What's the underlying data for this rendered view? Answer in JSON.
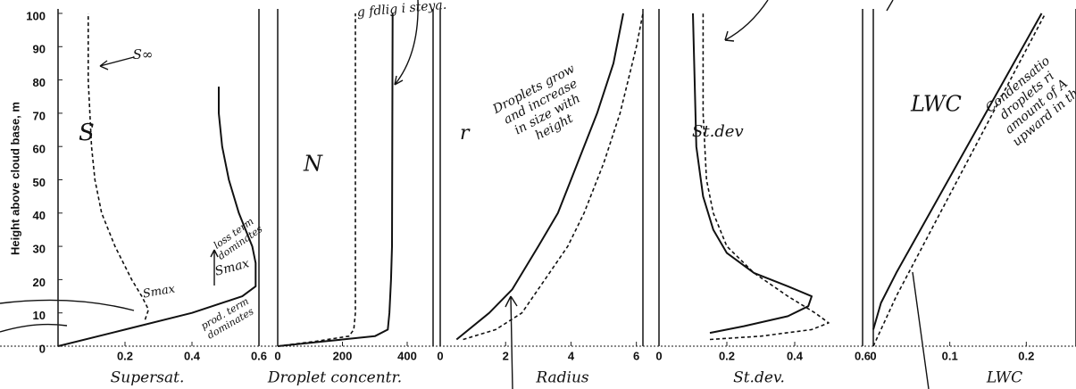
{
  "chart_data": [
    {
      "type": "line",
      "ylabel": "Height above cloud base, m",
      "panel_label": "S",
      "xlabel": "Supersat.",
      "xlim": [
        0,
        0.6
      ],
      "xticks": [
        0.2,
        0.4,
        0.6
      ],
      "ylim": [
        0,
        100
      ],
      "yticks": [
        0,
        10,
        20,
        30,
        40,
        50,
        60,
        70,
        80,
        90,
        100
      ],
      "annotations": [
        [
          "S∞"
        ],
        [
          "Smax"
        ],
        [
          "loss term",
          "dominates"
        ],
        [
          "Smax"
        ],
        [
          "prod. term",
          "dominates"
        ]
      ],
      "series": [
        {
          "style": "solid",
          "color": "#111111",
          "x": [
            0,
            0.2,
            0.4,
            0.55,
            0.59,
            0.59,
            0.59,
            0.58,
            0.56,
            0.54,
            0.51,
            0.49,
            0.48,
            0.48
          ],
          "y": [
            0,
            5,
            10,
            15,
            18,
            20,
            25,
            30,
            35,
            40,
            50,
            60,
            70,
            78
          ]
        },
        {
          "style": "dashed",
          "color": "#111111",
          "x": [
            0.26,
            0.27,
            0.25,
            0.22,
            0.17,
            0.13,
            0.11,
            0.1,
            0.09,
            0.09
          ],
          "y": [
            8,
            11,
            15,
            20,
            30,
            40,
            50,
            60,
            80,
            100
          ]
        }
      ]
    },
    {
      "type": "line",
      "panel_label": "N",
      "xlabel": "Droplet concentr.",
      "xlim": [
        0,
        480
      ],
      "xticks": [
        0,
        200,
        400
      ],
      "ylim": [
        0,
        100
      ],
      "annotations": [
        [
          "g fdlig i steya."
        ]
      ],
      "series": [
        {
          "style": "solid",
          "color": "#111111",
          "x": [
            0,
            150,
            300,
            340,
            345,
            350,
            353,
            355
          ],
          "y": [
            0,
            1.5,
            3,
            5,
            10,
            20,
            30,
            100
          ]
        },
        {
          "style": "dashed",
          "color": "#111111",
          "x": [
            0,
            120,
            220,
            235,
            240,
            240
          ],
          "y": [
            0,
            1.5,
            3,
            5,
            10,
            100
          ]
        }
      ]
    },
    {
      "type": "line",
      "panel_label": "r",
      "xlabel": "Radius",
      "xlim": [
        0,
        6.2
      ],
      "xticks": [
        0,
        2,
        4,
        6
      ],
      "ylim": [
        0,
        100
      ],
      "annotations": [
        [
          "Droplets grow",
          "and increase",
          "in size with",
          "height"
        ]
      ],
      "series": [
        {
          "style": "solid",
          "color": "#111111",
          "x": [
            0.5,
            1.5,
            2.2,
            3,
            3.6,
            4.2,
            4.8,
            5.3,
            5.6
          ],
          "y": [
            2,
            10,
            17,
            30,
            40,
            55,
            70,
            85,
            100
          ]
        },
        {
          "style": "dashed",
          "color": "#111111",
          "x": [
            0.7,
            1.7,
            2.5,
            3.2,
            3.9,
            4.4,
            5,
            5.5,
            6,
            6.2
          ],
          "y": [
            2,
            5,
            10,
            20,
            30,
            40,
            55,
            70,
            90,
            100
          ]
        }
      ]
    },
    {
      "type": "line",
      "panel_label": "St.dev",
      "xlabel": "St.dev.",
      "xlim": [
        0,
        0.6
      ],
      "xticks": [
        0,
        0.2,
        0.4,
        0.6
      ],
      "ylim": [
        0,
        100
      ],
      "annotations": [],
      "series": [
        {
          "style": "solid",
          "color": "#111111",
          "x": [
            0.15,
            0.25,
            0.38,
            0.44,
            0.45,
            0.38,
            0.28,
            0.2,
            0.16,
            0.13,
            0.11,
            0.1
          ],
          "y": [
            4,
            6,
            9,
            12,
            15,
            18,
            22,
            28,
            35,
            45,
            60,
            100
          ]
        },
        {
          "style": "dashed",
          "color": "#111111",
          "x": [
            0.15,
            0.3,
            0.45,
            0.5,
            0.46,
            0.38,
            0.28,
            0.2,
            0.16,
            0.14,
            0.13,
            0.13
          ],
          "y": [
            2,
            3,
            5,
            7,
            10,
            15,
            22,
            30,
            40,
            50,
            70,
            100
          ]
        }
      ]
    },
    {
      "type": "line",
      "panel_label": "LWC",
      "xlabel": "LWC",
      "xlim": [
        0,
        0.265
      ],
      "xticks": [
        0,
        0.1,
        0.2
      ],
      "ylim": [
        0,
        100
      ],
      "annotations": [
        [
          "Condensatio",
          "droplets ri",
          "amount of A",
          "upward in th"
        ]
      ],
      "series": [
        {
          "style": "solid",
          "color": "#111111",
          "x": [
            0,
            0.01,
            0.03,
            0.22
          ],
          "y": [
            5,
            13,
            22,
            100
          ]
        },
        {
          "style": "dashed",
          "color": "#111111",
          "x": [
            0,
            0.03,
            0.225
          ],
          "y": [
            0,
            15,
            100
          ]
        }
      ]
    }
  ]
}
